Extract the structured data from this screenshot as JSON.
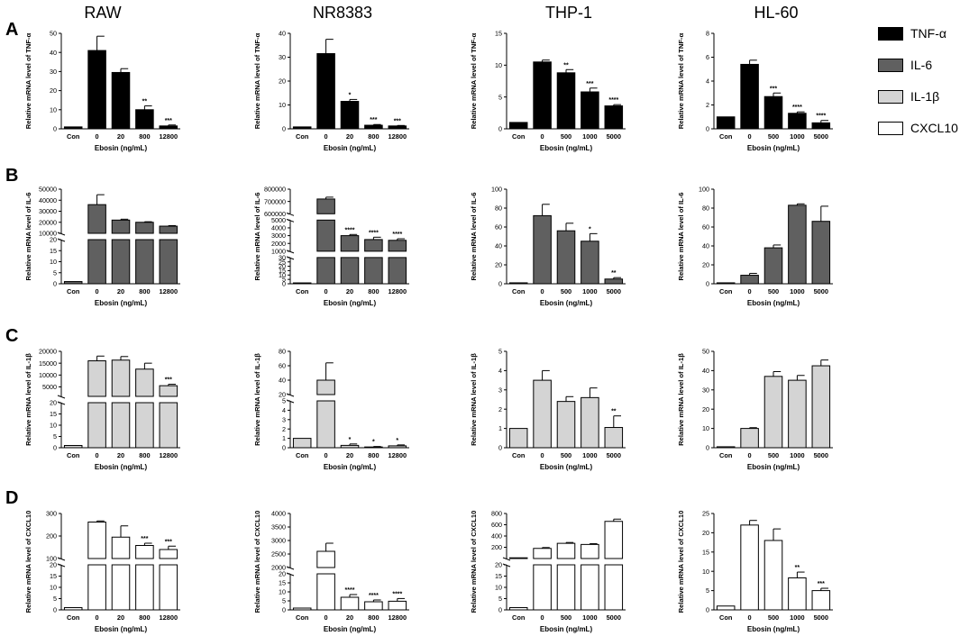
{
  "column_titles": [
    "RAW",
    "NR8383",
    "THP-1",
    "HL-60"
  ],
  "row_labels": [
    "A",
    "B",
    "C",
    "D"
  ],
  "legend": {
    "items": [
      {
        "label": "TNF-α",
        "color": "#000000"
      },
      {
        "label": "IL-6",
        "color": "#606060"
      },
      {
        "label": "IL-1β",
        "color": "#d4d4d4"
      },
      {
        "label": "CXCL10",
        "color": "#ffffff"
      }
    ]
  },
  "chart_data": [
    {
      "id": "A1",
      "type": "bar",
      "row": 0,
      "col": 0,
      "ylabel": "Relative mRNA level of TNF-α",
      "xlabel": "Ebosin (ng/mL)",
      "categories": [
        "Con",
        "0",
        "20",
        "800",
        "12800"
      ],
      "values": [
        1,
        41,
        29.5,
        10,
        1.5
      ],
      "errors": [
        0,
        7.5,
        2,
        2,
        0.5
      ],
      "sig": [
        "",
        "",
        "",
        "**",
        "***"
      ],
      "ylim": [
        0,
        50
      ],
      "yticks": [
        "0",
        "10",
        "20",
        "30",
        "40",
        "50"
      ],
      "color": "#000000"
    },
    {
      "id": "A2",
      "type": "bar",
      "row": 0,
      "col": 1,
      "ylabel": "Relative mRNA level of TNF-α",
      "xlabel": "Ebosin (ng/mL)",
      "categories": [
        "Con",
        "0",
        "20",
        "800",
        "12800"
      ],
      "values": [
        0.8,
        31.5,
        11.5,
        1.5,
        1.2
      ],
      "errors": [
        0,
        6,
        0.8,
        0.3,
        0.2
      ],
      "sig": [
        "",
        "",
        "*",
        "***",
        "***"
      ],
      "ylim": [
        0,
        40
      ],
      "yticks": [
        "0",
        "10",
        "20",
        "30",
        "40"
      ],
      "color": "#000000"
    },
    {
      "id": "A3",
      "type": "bar",
      "row": 0,
      "col": 2,
      "ylabel": "Relative mRNA level of TNF-α",
      "xlabel": "Ebosin (ng/mL)",
      "categories": [
        "Con",
        "0",
        "500",
        "1000",
        "5000"
      ],
      "values": [
        1,
        10.5,
        8.8,
        5.8,
        3.6
      ],
      "errors": [
        0,
        0.3,
        0.5,
        0.6,
        0.2
      ],
      "sig": [
        "",
        "",
        "**",
        "***",
        "****"
      ],
      "ylim": [
        0,
        15
      ],
      "yticks": [
        "0",
        "5",
        "10",
        "15"
      ],
      "color": "#000000"
    },
    {
      "id": "A4",
      "type": "bar",
      "row": 0,
      "col": 3,
      "ylabel": "Relative mRNA level of TNF-α",
      "xlabel": "Ebosin (ng/mL)",
      "categories": [
        "Con",
        "0",
        "500",
        "1000",
        "5000"
      ],
      "values": [
        1,
        5.4,
        2.7,
        1.3,
        0.5
      ],
      "errors": [
        0,
        0.35,
        0.3,
        0.12,
        0.2
      ],
      "sig": [
        "",
        "",
        "***",
        "****",
        "****"
      ],
      "ylim": [
        0,
        8
      ],
      "yticks": [
        "0",
        "2",
        "4",
        "6",
        "8"
      ],
      "color": "#000000"
    },
    {
      "id": "B1",
      "type": "bar",
      "row": 1,
      "col": 0,
      "ylabel": "Relative mRNA level of IL-6",
      "xlabel": "Ebosin (ng/mL)",
      "categories": [
        "Con",
        "0",
        "20",
        "800",
        "12800"
      ],
      "values": [
        1,
        36000,
        22000,
        20000,
        16500
      ],
      "errors": [
        0,
        9000,
        800,
        500,
        500
      ],
      "sig": [
        "",
        "",
        "",
        "",
        ""
      ],
      "segments": [
        {
          "range": [
            0,
            20
          ],
          "ticks": [
            0,
            5,
            10,
            15,
            20
          ],
          "frac": 0.5
        },
        {
          "range": [
            10000,
            50000
          ],
          "ticks": [
            10000,
            20000,
            30000,
            40000,
            50000
          ],
          "frac": 0.5
        }
      ],
      "color": "#606060"
    },
    {
      "id": "B2",
      "type": "bar",
      "row": 1,
      "col": 1,
      "ylabel": "Relative mRNA level of IL-6",
      "xlabel": "Ebosin (ng/mL)",
      "categories": [
        "Con",
        "0",
        "20",
        "800",
        "12800"
      ],
      "values": [
        1,
        720000,
        3000,
        2500,
        2400
      ],
      "errors": [
        0,
        15000,
        150,
        300,
        200
      ],
      "sig": [
        "",
        "",
        "****",
        "****",
        "****"
      ],
      "segments": [
        {
          "range": [
            0,
            30
          ],
          "ticks": [
            0,
            5,
            10,
            15,
            20,
            25,
            30
          ],
          "frac": 0.32
        },
        {
          "range": [
            1000,
            5000
          ],
          "ticks": [
            1000,
            2000,
            3000,
            4000,
            5000
          ],
          "frac": 0.38
        },
        {
          "range": [
            600000,
            800000
          ],
          "ticks": [
            600000,
            700000,
            800000
          ],
          "frac": 0.3
        }
      ],
      "color": "#606060"
    },
    {
      "id": "B3",
      "type": "bar",
      "row": 1,
      "col": 2,
      "ylabel": "Relative mRNA level of IL-6",
      "xlabel": "Ebosin (ng/mL)",
      "categories": [
        "Con",
        "0",
        "500",
        "1000",
        "5000"
      ],
      "values": [
        1,
        72,
        56,
        45,
        5
      ],
      "errors": [
        0,
        12,
        8,
        8,
        1.5
      ],
      "sig": [
        "",
        "",
        "",
        "*",
        "**"
      ],
      "ylim": [
        0,
        100
      ],
      "yticks": [
        "0",
        "20",
        "40",
        "60",
        "80",
        "100"
      ],
      "color": "#606060"
    },
    {
      "id": "B4",
      "type": "bar",
      "row": 1,
      "col": 3,
      "ylabel": "Relative mRNA level of IL-6",
      "xlabel": "Ebosin (ng/mL)",
      "categories": [
        "Con",
        "0",
        "500",
        "1000",
        "5000"
      ],
      "values": [
        1,
        9,
        38,
        83,
        66
      ],
      "errors": [
        0,
        2,
        3,
        1.5,
        16
      ],
      "sig": [
        "",
        "",
        "",
        "",
        ""
      ],
      "ylim": [
        0,
        100
      ],
      "yticks": [
        "0",
        "20",
        "40",
        "60",
        "80",
        "100"
      ],
      "color": "#606060"
    },
    {
      "id": "C1",
      "type": "bar",
      "row": 2,
      "col": 0,
      "ylabel": "Relative mRNA level of IL-1β",
      "xlabel": "Ebosin (ng/mL)",
      "categories": [
        "Con",
        "0",
        "20",
        "800",
        "12800"
      ],
      "values": [
        1,
        16000,
        16300,
        12500,
        5500
      ],
      "errors": [
        0,
        2000,
        1500,
        2500,
        600
      ],
      "sig": [
        "",
        "",
        "",
        "",
        "***"
      ],
      "segments": [
        {
          "range": [
            0,
            20
          ],
          "ticks": [
            0,
            5,
            10,
            15,
            20
          ],
          "frac": 0.5
        },
        {
          "range": [
            1000,
            20000
          ],
          "ticks": [
            5000,
            10000,
            15000,
            20000
          ],
          "frac": 0.5
        }
      ],
      "color": "#d4d4d4"
    },
    {
      "id": "C2",
      "type": "bar",
      "row": 2,
      "col": 1,
      "ylabel": "Relative mRNA level of IL-1β",
      "xlabel": "Ebosin (ng/mL)",
      "categories": [
        "Con",
        "0",
        "20",
        "800",
        "12800"
      ],
      "values": [
        1,
        40,
        0.25,
        0.08,
        0.2
      ],
      "errors": [
        0,
        24,
        0.15,
        0.05,
        0.1
      ],
      "sig": [
        "",
        "",
        "*",
        "*",
        "*"
      ],
      "segments": [
        {
          "range": [
            0,
            5
          ],
          "ticks": [
            0,
            1,
            2,
            3,
            4,
            5
          ],
          "frac": 0.52
        },
        {
          "range": [
            20,
            80
          ],
          "ticks": [
            20,
            40,
            60,
            80
          ],
          "frac": 0.48
        }
      ],
      "color": "#d4d4d4"
    },
    {
      "id": "C3",
      "type": "bar",
      "row": 2,
      "col": 2,
      "ylabel": "Relative mRNA level of IL-1β",
      "xlabel": "Ebosin (ng/mL)",
      "categories": [
        "Con",
        "0",
        "500",
        "1000",
        "5000"
      ],
      "values": [
        1,
        3.5,
        2.4,
        2.6,
        1.05
      ],
      "errors": [
        0,
        0.5,
        0.25,
        0.5,
        0.6
      ],
      "sig": [
        "",
        "",
        "",
        "",
        "**"
      ],
      "ylim": [
        0,
        5
      ],
      "yticks": [
        "0",
        "1",
        "2",
        "3",
        "4",
        "5"
      ],
      "color": "#d4d4d4"
    },
    {
      "id": "C4",
      "type": "bar",
      "row": 2,
      "col": 3,
      "ylabel": "Relative mRNA level of IL-1β",
      "xlabel": "Ebosin (ng/mL)",
      "categories": [
        "Con",
        "0",
        "500",
        "1000",
        "5000"
      ],
      "values": [
        0.5,
        10,
        37,
        35,
        42.5
      ],
      "errors": [
        0,
        0.4,
        2.5,
        2.5,
        3
      ],
      "sig": [
        "",
        "",
        "",
        "",
        ""
      ],
      "ylim": [
        0,
        50
      ],
      "yticks": [
        "0",
        "10",
        "20",
        "30",
        "40",
        "50"
      ],
      "color": "#d4d4d4"
    },
    {
      "id": "D1",
      "type": "bar",
      "row": 3,
      "col": 0,
      "ylabel": "Relative mRNA level of CXCL10",
      "xlabel": "Ebosin (ng/mL)",
      "categories": [
        "Con",
        "0",
        "20",
        "800",
        "12800"
      ],
      "values": [
        1,
        262,
        195,
        158,
        140
      ],
      "errors": [
        0,
        5,
        50,
        10,
        15
      ],
      "sig": [
        "",
        "",
        "",
        "***",
        "***"
      ],
      "segments": [
        {
          "range": [
            0,
            20
          ],
          "ticks": [
            0,
            5,
            10,
            15,
            20
          ],
          "frac": 0.5
        },
        {
          "range": [
            100,
            300
          ],
          "ticks": [
            100,
            200,
            300
          ],
          "frac": 0.5
        }
      ],
      "color": "#ffffff"
    },
    {
      "id": "D2",
      "type": "bar",
      "row": 3,
      "col": 1,
      "ylabel": "Relative mRNA level of CXCL10",
      "xlabel": "Ebosin (ng/mL)",
      "categories": [
        "Con",
        "0",
        "20",
        "800",
        "12800"
      ],
      "values": [
        1,
        2600,
        7,
        4.5,
        4.8
      ],
      "errors": [
        0,
        300,
        1.5,
        1,
        1.5
      ],
      "sig": [
        "",
        "",
        "****",
        "****",
        "****"
      ],
      "segments": [
        {
          "range": [
            0,
            20
          ],
          "ticks": [
            0,
            5,
            10,
            15,
            20
          ],
          "frac": 0.4
        },
        {
          "range": [
            2000,
            4000
          ],
          "ticks": [
            2000,
            2500,
            3000,
            3500,
            4000
          ],
          "frac": 0.6
        }
      ],
      "color": "#ffffff"
    },
    {
      "id": "D3",
      "type": "bar",
      "row": 3,
      "col": 2,
      "ylabel": "Relative mRNA level of CXCL10",
      "xlabel": "Ebosin (ng/mL)",
      "categories": [
        "Con",
        "0",
        "500",
        "1000",
        "5000"
      ],
      "values": [
        1,
        180,
        270,
        250,
        660
      ],
      "errors": [
        0,
        15,
        15,
        15,
        40
      ],
      "sig": [
        "",
        "",
        "",
        "",
        ""
      ],
      "segments": [
        {
          "range": [
            0,
            20
          ],
          "ticks": [
            0,
            5,
            10,
            15,
            20
          ],
          "frac": 0.5
        },
        {
          "range": [
            0,
            800
          ],
          "ticks": [
            200,
            400,
            600,
            800
          ],
          "frac": 0.5
        }
      ],
      "color": "#ffffff"
    },
    {
      "id": "D4",
      "type": "bar",
      "row": 3,
      "col": 3,
      "ylabel": "Relative mRNA level of CXCL10",
      "xlabel": "Ebosin (ng/mL)",
      "categories": [
        "Con",
        "0",
        "500",
        "1000",
        "5000"
      ],
      "values": [
        1,
        22,
        18,
        8.3,
        5
      ],
      "errors": [
        0,
        1.2,
        3,
        1.5,
        0.6
      ],
      "sig": [
        "",
        "",
        "",
        "**",
        "***"
      ],
      "ylim": [
        0,
        25
      ],
      "yticks": [
        "0",
        "5",
        "10",
        "15",
        "20",
        "25"
      ],
      "color": "#ffffff"
    }
  ]
}
